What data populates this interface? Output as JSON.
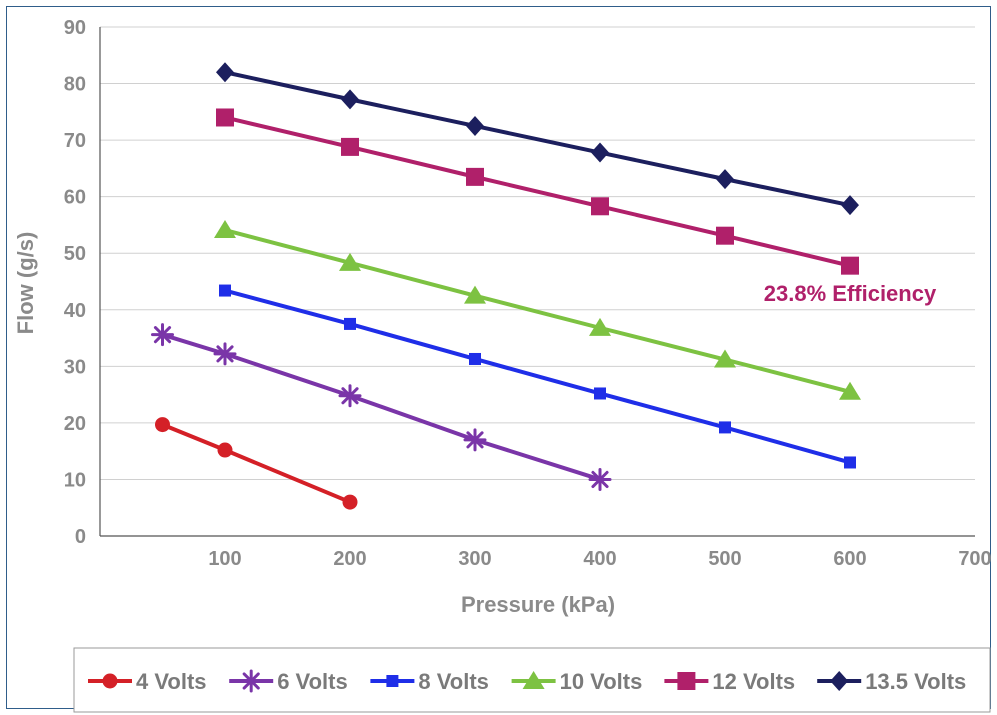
{
  "chart_data": {
    "type": "line",
    "title": "",
    "xlabel": "Pressure (kPa)",
    "ylabel": "Flow (g/s)",
    "xlim": [
      0,
      700
    ],
    "ylim": [
      0,
      90
    ],
    "xticks": [
      100,
      200,
      300,
      400,
      500,
      600,
      700
    ],
    "yticks": [
      0,
      10,
      20,
      30,
      40,
      50,
      60,
      70,
      80,
      90
    ],
    "grid": true,
    "legend_position": "bottom",
    "series": [
      {
        "name": "4 Volts",
        "color": "#d42027",
        "marker": "circle",
        "x": [
          50,
          100,
          200
        ],
        "y": [
          19.7,
          15.2,
          6.0
        ]
      },
      {
        "name": "6 Volts",
        "color": "#7a35a8",
        "marker": "asterisk",
        "x": [
          50,
          100,
          200,
          300,
          400
        ],
        "y": [
          35.6,
          32.2,
          24.8,
          17.0,
          10.0
        ]
      },
      {
        "name": "8 Volts",
        "color": "#1f2ee8",
        "marker": "small-square",
        "x": [
          100,
          200,
          300,
          400,
          500,
          600
        ],
        "y": [
          43.4,
          37.5,
          31.3,
          25.2,
          19.2,
          13.0
        ]
      },
      {
        "name": "10 Volts",
        "color": "#7dc242",
        "marker": "triangle",
        "x": [
          100,
          200,
          300,
          400,
          500,
          600
        ],
        "y": [
          54.1,
          48.3,
          42.5,
          36.8,
          31.2,
          25.5
        ]
      },
      {
        "name": "12 Volts",
        "color": "#b0206a",
        "marker": "square",
        "x": [
          100,
          200,
          300,
          400,
          500,
          600
        ],
        "y": [
          74.0,
          68.8,
          63.5,
          58.3,
          53.1,
          47.8
        ]
      },
      {
        "name": "13.5 Volts",
        "color": "#1c1f5e",
        "marker": "diamond",
        "x": [
          100,
          200,
          300,
          400,
          500,
          600
        ],
        "y": [
          82.0,
          77.2,
          72.5,
          67.8,
          63.1,
          58.5
        ]
      }
    ],
    "annotations": [
      {
        "text": "23.8% Efficiency",
        "x": 600,
        "y": 43,
        "color": "#b0206a"
      }
    ]
  }
}
